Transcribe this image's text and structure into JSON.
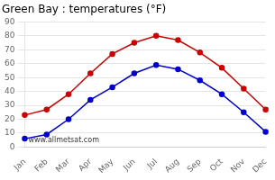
{
  "chart_data": {
    "type": "line",
    "title": "Green Bay : temperatures (°F)",
    "categories": [
      "Jan",
      "Feb",
      "Mar",
      "Apr",
      "May",
      "Jun",
      "Jul",
      "Aug",
      "Sep",
      "Oct",
      "Nov",
      "Dec"
    ],
    "series": [
      {
        "color": "#cc0000",
        "values": [
          23,
          27,
          38,
          53,
          67,
          75,
          80,
          77,
          68,
          57,
          42,
          27
        ]
      },
      {
        "color": "#0000cc",
        "values": [
          6,
          9,
          20,
          34,
          43,
          53,
          59,
          56,
          48,
          38,
          25,
          11
        ]
      }
    ],
    "ylim": [
      0,
      90
    ],
    "yticks": [
      0,
      10,
      20,
      30,
      40,
      50,
      60,
      70,
      80,
      90
    ],
    "grid": "y",
    "marker": "circle",
    "annotations": [
      "www.allmetsat.com"
    ]
  }
}
